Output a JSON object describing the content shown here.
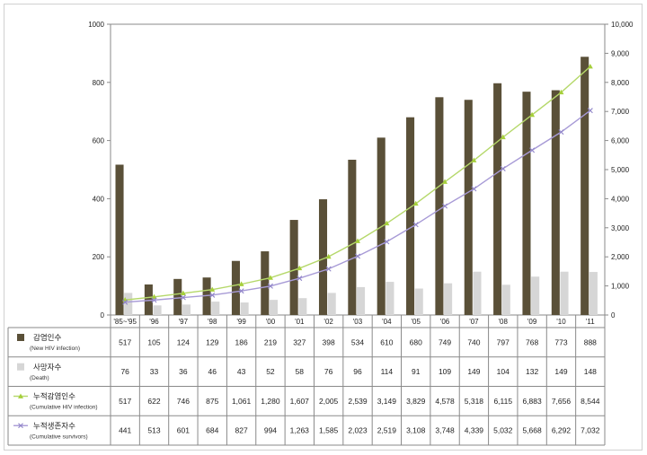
{
  "chart_data": {
    "type": "bar",
    "categories": [
      "'85~'95",
      "'96",
      "'97",
      "'98",
      "'99",
      "'00",
      "'01",
      "'02",
      "'03",
      "'04",
      "'05",
      "'06",
      "'07",
      "'08",
      "'09",
      "'10",
      "'11"
    ],
    "y_left": {
      "min": 0,
      "max": 1000,
      "ticks": [
        "0",
        "200",
        "400",
        "600",
        "800",
        "1000"
      ]
    },
    "y_right": {
      "min": 0,
      "max": 10000,
      "ticks": [
        "0",
        "1,000",
        "2,000",
        "3,000",
        "4,000",
        "5,000",
        "6,000",
        "7,000",
        "8,000",
        "9,000",
        "10,000"
      ]
    },
    "grid": false,
    "legend_placement": "data-table-left",
    "series": [
      {
        "name": "감염인수",
        "name_sub": "(New HIV infection)",
        "type": "bar",
        "axis": "left",
        "color": "#5a5038",
        "values": [
          517,
          105,
          124,
          129,
          186,
          219,
          327,
          398,
          534,
          610,
          680,
          749,
          740,
          797,
          768,
          773,
          888
        ],
        "labels": [
          "517",
          "105",
          "124",
          "129",
          "186",
          "219",
          "327",
          "398",
          "534",
          "610",
          "680",
          "749",
          "740",
          "797",
          "768",
          "773",
          "888"
        ]
      },
      {
        "name": "사망자수",
        "name_sub": "(Death)",
        "type": "bar",
        "axis": "left",
        "color": "#d6d6d6",
        "values": [
          76,
          33,
          36,
          46,
          43,
          52,
          58,
          76,
          96,
          114,
          91,
          109,
          149,
          104,
          132,
          149,
          148
        ],
        "labels": [
          "76",
          "33",
          "36",
          "46",
          "43",
          "52",
          "58",
          "76",
          "96",
          "114",
          "91",
          "109",
          "149",
          "104",
          "132",
          "149",
          "148"
        ]
      },
      {
        "name": "누적감염인수",
        "name_sub": "(Cumulative HIV infection)",
        "type": "line",
        "axis": "right",
        "color": "#b5d86a",
        "values": [
          517,
          622,
          746,
          875,
          1061,
          1280,
          1607,
          2005,
          2539,
          3149,
          3829,
          4578,
          5318,
          6115,
          6883,
          7656,
          8544
        ],
        "labels": [
          "517",
          "622",
          "746",
          "875",
          "1,061",
          "1,280",
          "1,607",
          "2,005",
          "2,539",
          "3,149",
          "3,829",
          "4,578",
          "5,318",
          "6,115",
          "6,883",
          "7,656",
          "8,544"
        ]
      },
      {
        "name": "누적생존자수",
        "name_sub": "(Cumulative survivors)",
        "type": "line",
        "axis": "right",
        "color": "#a79ad6",
        "values": [
          441,
          513,
          601,
          684,
          827,
          994,
          1263,
          1585,
          2023,
          2519,
          3108,
          3748,
          4339,
          5032,
          5668,
          6292,
          7032
        ],
        "labels": [
          "441",
          "513",
          "601",
          "684",
          "827",
          "994",
          "1,263",
          "1,585",
          "2,023",
          "2,519",
          "3,108",
          "3,748",
          "4,339",
          "5,032",
          "5,668",
          "6,292",
          "7,032"
        ]
      }
    ]
  }
}
